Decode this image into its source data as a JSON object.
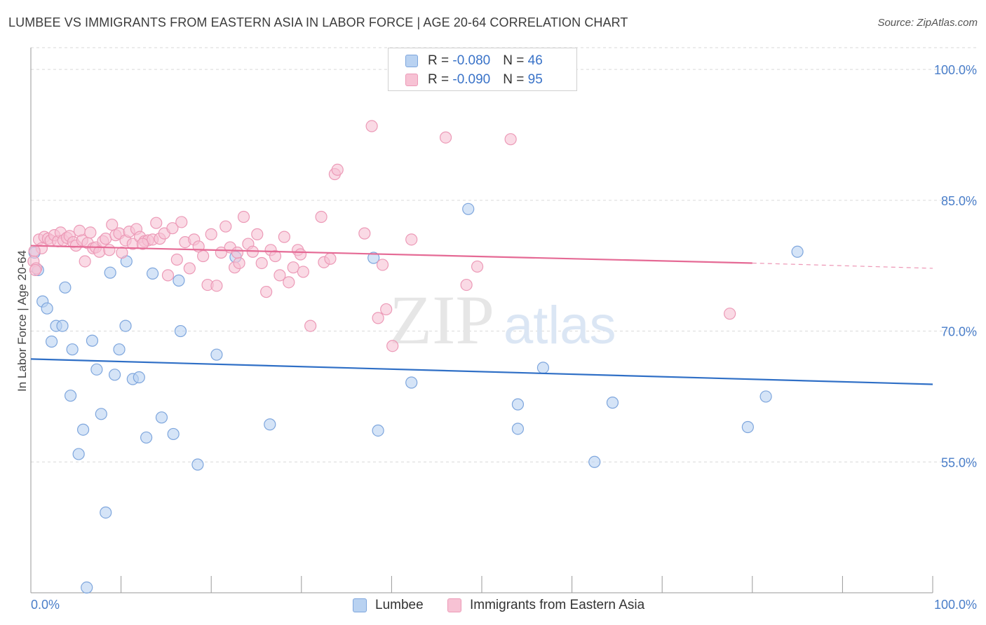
{
  "title": "LUMBEE VS IMMIGRANTS FROM EASTERN ASIA IN LABOR FORCE | AGE 20-64 CORRELATION CHART",
  "source": "Source: ZipAtlas.com",
  "watermark": {
    "zip": "ZIP",
    "atlas": "atlas"
  },
  "legend_top": [
    {
      "r_label": "R = ",
      "r_value": "-0.080",
      "n_label": "N = ",
      "n_value": "46"
    },
    {
      "r_label": "R = ",
      "r_value": "-0.090",
      "n_label": "N = ",
      "n_value": "95"
    }
  ],
  "colors": {
    "lumbee_fill": "#b9d2f1",
    "lumbee_stroke": "#7ea6dd",
    "lumbee_line": "#2f6fc6",
    "immig_fill": "#f7c2d4",
    "immig_stroke": "#ec9ab7",
    "immig_line": "#e56a95",
    "tick": "#4a7ec9",
    "grid": "#d9d9d9"
  },
  "chart_data": {
    "type": "scatter",
    "title": "LUMBEE VS IMMIGRANTS FROM EASTERN ASIA IN LABOR FORCE | AGE 20-64 CORRELATION CHART",
    "xlabel": "",
    "ylabel": "In Labor Force | Age 20-64",
    "xlim": [
      0,
      100
    ],
    "ylim": [
      40,
      102.5
    ],
    "x_tick_labels": [
      "0.0%",
      "100.0%"
    ],
    "y_ticks": [
      55,
      70,
      85,
      100
    ],
    "y_tick_labels": [
      "55.0%",
      "70.0%",
      "85.0%",
      "100.0%"
    ],
    "grid": true,
    "legend_position": "top-center and bottom",
    "series": [
      {
        "name": "Lumbee",
        "r": -0.08,
        "n": 46,
        "trend": {
          "x": [
            0,
            100
          ],
          "y": [
            66.8,
            63.9
          ]
        },
        "points": [
          [
            0.4,
            79.0
          ],
          [
            0.8,
            77.0
          ],
          [
            1.3,
            73.4
          ],
          [
            1.8,
            72.6
          ],
          [
            2.3,
            68.8
          ],
          [
            2.8,
            70.6
          ],
          [
            3.5,
            70.6
          ],
          [
            3.8,
            75.0
          ],
          [
            4.4,
            62.6
          ],
          [
            4.6,
            67.9
          ],
          [
            5.3,
            55.9
          ],
          [
            5.8,
            58.7
          ],
          [
            6.8,
            68.9
          ],
          [
            7.3,
            65.6
          ],
          [
            7.8,
            60.5
          ],
          [
            8.3,
            49.2
          ],
          [
            8.8,
            76.7
          ],
          [
            9.3,
            65.0
          ],
          [
            9.8,
            67.9
          ],
          [
            10.5,
            70.6
          ],
          [
            10.6,
            78.0
          ],
          [
            11.3,
            64.5
          ],
          [
            12.0,
            64.7
          ],
          [
            12.8,
            57.8
          ],
          [
            13.5,
            76.6
          ],
          [
            14.5,
            60.1
          ],
          [
            15.8,
            58.2
          ],
          [
            16.4,
            75.8
          ],
          [
            16.6,
            70.0
          ],
          [
            18.5,
            54.7
          ],
          [
            20.6,
            67.3
          ],
          [
            22.7,
            78.5
          ],
          [
            26.5,
            59.3
          ],
          [
            38.0,
            78.4
          ],
          [
            38.5,
            58.6
          ],
          [
            42.2,
            64.1
          ],
          [
            48.5,
            84.0
          ],
          [
            54.0,
            61.6
          ],
          [
            54.0,
            58.8
          ],
          [
            56.8,
            65.8
          ],
          [
            62.5,
            55.0
          ],
          [
            64.5,
            61.8
          ],
          [
            79.5,
            59.0
          ],
          [
            81.5,
            62.5
          ],
          [
            85.0,
            79.1
          ],
          [
            6.2,
            40.6
          ]
        ]
      },
      {
        "name": "Immigrants from Eastern Asia",
        "r": -0.09,
        "n": 95,
        "trend": {
          "x": [
            0,
            80
          ],
          "y": [
            79.8,
            77.8
          ]
        },
        "trend_dashed": {
          "x": [
            80,
            100
          ],
          "y": [
            77.8,
            77.2
          ]
        },
        "points": [
          [
            0.3,
            78.0
          ],
          [
            0.6,
            77.2
          ],
          [
            0.9,
            80.5
          ],
          [
            1.2,
            79.5
          ],
          [
            1.5,
            80.8
          ],
          [
            1.9,
            80.6
          ],
          [
            2.2,
            80.4
          ],
          [
            2.6,
            81.0
          ],
          [
            3.0,
            80.3
          ],
          [
            3.3,
            81.3
          ],
          [
            3.6,
            80.4
          ],
          [
            4.0,
            80.7
          ],
          [
            4.3,
            80.9
          ],
          [
            4.7,
            80.2
          ],
          [
            5.0,
            79.8
          ],
          [
            5.4,
            81.5
          ],
          [
            5.7,
            80.4
          ],
          [
            6.0,
            78.0
          ],
          [
            6.3,
            80.1
          ],
          [
            6.6,
            81.3
          ],
          [
            6.9,
            79.5
          ],
          [
            7.2,
            79.6
          ],
          [
            7.6,
            79.1
          ],
          [
            8.0,
            80.3
          ],
          [
            8.3,
            80.6
          ],
          [
            8.7,
            79.3
          ],
          [
            9.0,
            82.2
          ],
          [
            9.4,
            81.0
          ],
          [
            9.8,
            81.2
          ],
          [
            10.1,
            79.0
          ],
          [
            10.5,
            80.4
          ],
          [
            10.9,
            81.4
          ],
          [
            11.3,
            80.0
          ],
          [
            11.7,
            81.7
          ],
          [
            12.1,
            80.8
          ],
          [
            12.6,
            80.3
          ],
          [
            13.0,
            80.4
          ],
          [
            13.5,
            80.5
          ],
          [
            13.9,
            82.4
          ],
          [
            14.3,
            80.6
          ],
          [
            14.8,
            81.2
          ],
          [
            15.2,
            76.4
          ],
          [
            15.7,
            81.8
          ],
          [
            16.2,
            78.2
          ],
          [
            16.7,
            82.5
          ],
          [
            17.1,
            80.2
          ],
          [
            17.6,
            77.2
          ],
          [
            18.1,
            80.5
          ],
          [
            18.6,
            79.7
          ],
          [
            19.1,
            78.6
          ],
          [
            19.6,
            75.3
          ],
          [
            20.0,
            81.1
          ],
          [
            20.6,
            75.2
          ],
          [
            21.1,
            79.0
          ],
          [
            21.6,
            82.0
          ],
          [
            22.1,
            79.6
          ],
          [
            22.6,
            77.3
          ],
          [
            23.1,
            77.8
          ],
          [
            23.6,
            83.1
          ],
          [
            24.1,
            80.0
          ],
          [
            24.6,
            79.1
          ],
          [
            25.1,
            81.1
          ],
          [
            25.6,
            77.8
          ],
          [
            26.1,
            74.5
          ],
          [
            26.6,
            79.3
          ],
          [
            27.1,
            78.6
          ],
          [
            27.6,
            76.4
          ],
          [
            28.1,
            80.8
          ],
          [
            28.6,
            75.6
          ],
          [
            29.1,
            77.3
          ],
          [
            29.6,
            79.3
          ],
          [
            30.2,
            76.8
          ],
          [
            31.0,
            70.6
          ],
          [
            32.5,
            77.9
          ],
          [
            33.2,
            78.3
          ],
          [
            32.2,
            83.1
          ],
          [
            33.7,
            88.0
          ],
          [
            34.0,
            88.5
          ],
          [
            37.0,
            81.2
          ],
          [
            37.8,
            93.5
          ],
          [
            38.5,
            71.5
          ],
          [
            39.0,
            77.6
          ],
          [
            39.4,
            72.5
          ],
          [
            40.1,
            68.3
          ],
          [
            42.2,
            80.5
          ],
          [
            46.0,
            92.2
          ],
          [
            48.3,
            75.3
          ],
          [
            49.5,
            77.4
          ],
          [
            53.2,
            92.0
          ],
          [
            77.5,
            72.0
          ],
          [
            0.4,
            79.2
          ],
          [
            0.5,
            77.0
          ],
          [
            12.4,
            80.0
          ],
          [
            22.9,
            79.0
          ],
          [
            29.9,
            78.8
          ]
        ]
      }
    ]
  },
  "bottom_legend": [
    {
      "label": "Lumbee"
    },
    {
      "label": "Immigrants from Eastern Asia"
    }
  ]
}
